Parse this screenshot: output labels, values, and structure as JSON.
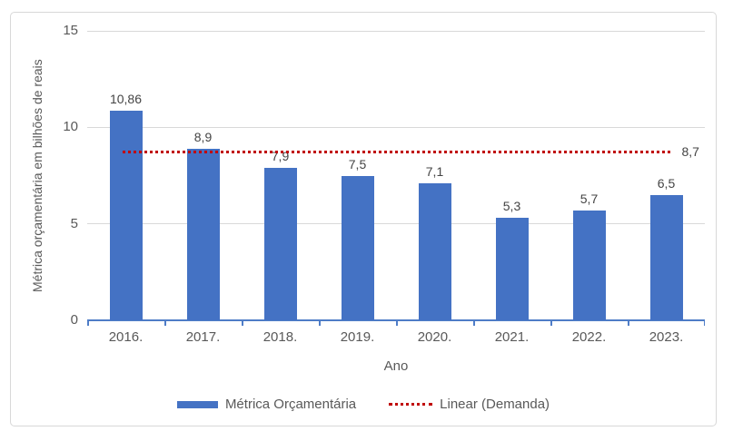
{
  "chart_data": {
    "type": "bar",
    "title": "",
    "xlabel": "Ano",
    "ylabel": "Métrica orçamentária em bilhões de reais",
    "categories": [
      "2016.",
      "2017.",
      "2018.",
      "2019.",
      "2020.",
      "2021.",
      "2022.",
      "2023."
    ],
    "series": [
      {
        "name": "Métrica Orçamentária",
        "type": "bar",
        "values": [
          10.86,
          8.9,
          7.9,
          7.5,
          7.1,
          5.3,
          5.7,
          6.5
        ],
        "labels": [
          "10,86",
          "8,9",
          "7,9",
          "7,5",
          "7,1",
          "5,3",
          "5,7",
          "6,5"
        ],
        "color": "#4472C4"
      },
      {
        "name": "Linear (Demanda)",
        "type": "trendline",
        "value": 8.7,
        "label": "8,7",
        "color": "#C00000",
        "line_style": "dotted"
      }
    ],
    "ylim": [
      0,
      15
    ],
    "yticks": [
      0,
      5,
      10,
      15
    ],
    "ytick_labels": [
      "0",
      "5",
      "10",
      "15"
    ],
    "grid": true,
    "legend_position": "bottom",
    "colors": {
      "bar": "#4472C4",
      "trend": "#C00000",
      "axis": "#4f7dc7",
      "grid": "#d9d9d9",
      "text": "#595959",
      "data_label": "#444444"
    }
  }
}
